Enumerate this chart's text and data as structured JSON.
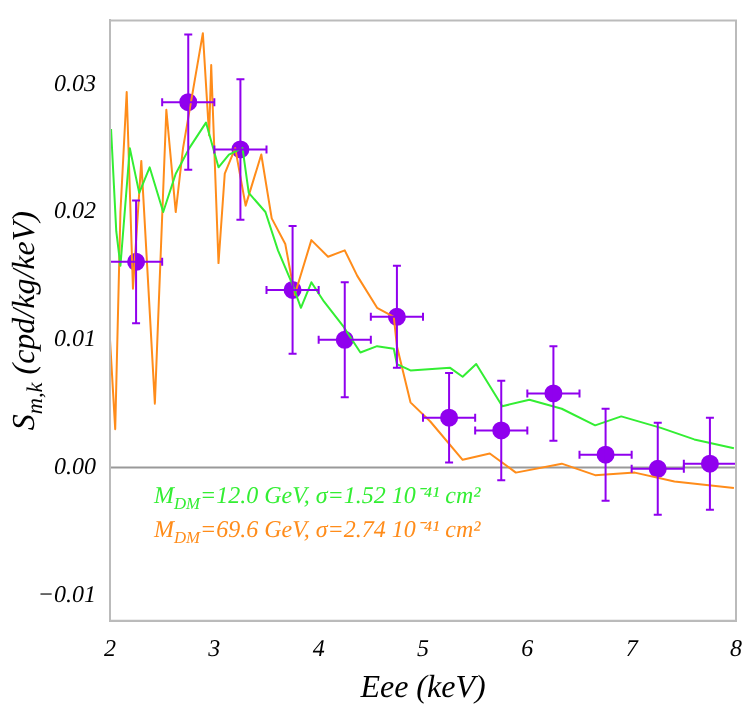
{
  "chart_data": {
    "type": "line",
    "xlabel": "Eee (keV)",
    "ylabel": "S$_{m,k}$ (cpd/kg/keV)",
    "xlim": [
      2,
      8
    ],
    "xticks": [
      2,
      3,
      4,
      5,
      6,
      7,
      8
    ],
    "ylim": [
      -0.012,
      0.035
    ],
    "yticks": [
      {
        "value": -0.01,
        "label": "−0.01"
      },
      {
        "value": 0,
        "label": "0.00"
      },
      0.01,
      0.02,
      0.03
    ],
    "grid": false,
    "legend": "bottom left",
    "line_style": "solid",
    "marker": "none",
    "ref_lines": [
      {
        "axis": "y",
        "value": 0,
        "color": "#999999"
      }
    ],
    "series": [
      {
        "name": "M$_{DM}$=12.0 GeV, σ=1.52 10⁻⁴¹ cm²",
        "color": "#33ee33",
        "x": [
          2.01,
          2.06,
          2.1,
          2.19,
          2.28,
          2.38,
          2.51,
          2.63,
          2.76,
          2.92,
          3.04,
          3.14,
          3.27,
          3.33,
          3.49,
          3.61,
          3.74,
          3.83,
          3.93,
          4.05,
          4.24,
          4.4,
          4.56,
          4.72,
          4.75,
          4.88,
          5.26,
          5.38,
          5.51,
          5.76,
          6.02,
          6.33,
          6.65,
          6.9,
          7.28,
          7.6,
          7.98
        ],
        "values": [
          0.0265,
          0.0185,
          0.0158,
          0.025,
          0.0215,
          0.0235,
          0.02,
          0.023,
          0.025,
          0.027,
          0.0235,
          0.0245,
          0.025,
          0.0215,
          0.02,
          0.017,
          0.0145,
          0.0125,
          0.0145,
          0.013,
          0.011,
          0.009,
          0.0095,
          0.0093,
          0.0081,
          0.0076,
          0.0078,
          0.0071,
          0.0081,
          0.0048,
          0.0053,
          0.0046,
          0.0033,
          0.004,
          0.0031,
          0.0022,
          0.0015
        ]
      },
      {
        "name": "M$_{DM}$=69.6 GeV, σ=2.74 10⁻⁴¹ cm²",
        "color": "#ff8c1a",
        "x": [
          2.0,
          2.05,
          2.1,
          2.16,
          2.22,
          2.3,
          2.43,
          2.54,
          2.63,
          2.7,
          2.89,
          2.95,
          2.97,
          3.04,
          3.1,
          3.2,
          3.3,
          3.45,
          3.55,
          3.68,
          3.77,
          3.93,
          4.09,
          4.25,
          4.37,
          4.56,
          4.72,
          4.75,
          4.88,
          5.07,
          5.38,
          5.64,
          5.89,
          6.33,
          6.65,
          7.03,
          7.41,
          7.98
        ],
        "values": [
          0.01,
          0.003,
          0.02,
          0.0294,
          0.014,
          0.024,
          0.005,
          0.028,
          0.02,
          0.025,
          0.034,
          0.026,
          0.0315,
          0.016,
          0.023,
          0.025,
          0.0205,
          0.0245,
          0.0195,
          0.0175,
          0.0135,
          0.0178,
          0.0165,
          0.017,
          0.015,
          0.0125,
          0.0118,
          0.0095,
          0.0051,
          0.0036,
          0.0006,
          0.0011,
          -0.0004,
          0.0003,
          -0.0006,
          -0.0004,
          -0.0011,
          -0.0016
        ]
      },
      {
        "type": "scatter",
        "color": "#9000ee",
        "marker": "circle",
        "x": [
          2.25,
          2.75,
          3.25,
          3.75,
          4.25,
          4.75,
          5.25,
          5.75,
          6.25,
          6.75,
          7.25,
          7.75
        ],
        "values": [
          0.0161,
          0.0286,
          0.0249,
          0.0139,
          0.01,
          0.0118,
          0.0039,
          0.0029,
          0.0058,
          0.001,
          -0.0001,
          0.0003
        ],
        "errors": [
          0.0048,
          0.0053,
          0.0055,
          0.005,
          0.0045,
          0.004,
          0.0035,
          0.0039,
          0.0037,
          0.0036,
          0.0036,
          0.0036
        ],
        "xerrors": [
          0.25,
          0.25,
          0.25,
          0.25,
          0.25,
          0.25,
          0.25,
          0.25,
          0.25,
          0.25,
          0.25,
          0.25
        ]
      }
    ]
  }
}
